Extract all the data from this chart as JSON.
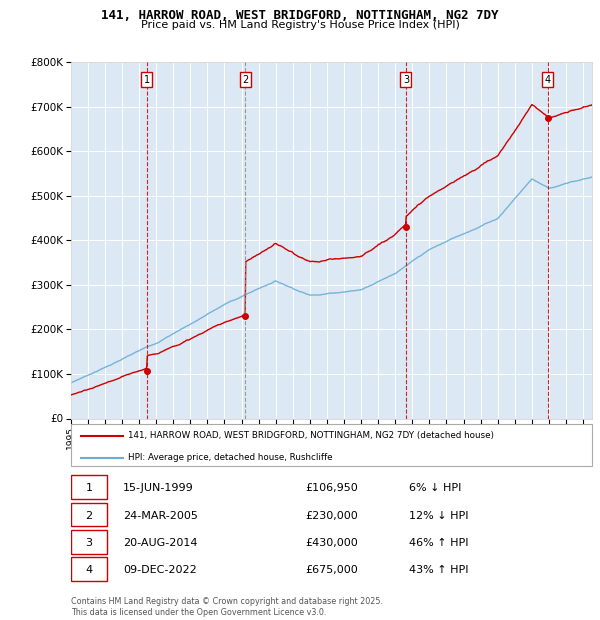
{
  "title": "141, HARROW ROAD, WEST BRIDGFORD, NOTTINGHAM, NG2 7DY",
  "subtitle": "Price paid vs. HM Land Registry's House Price Index (HPI)",
  "plot_bg_color": "#dce9f5",
  "ylim": [
    0,
    800000
  ],
  "yticks": [
    0,
    100000,
    200000,
    300000,
    400000,
    500000,
    600000,
    700000,
    800000
  ],
  "ytick_labels": [
    "£0",
    "£100K",
    "£200K",
    "£300K",
    "£400K",
    "£500K",
    "£600K",
    "£700K",
    "£800K"
  ],
  "xlim_start": 1995.0,
  "xlim_end": 2025.5,
  "sale_dates": [
    1999.45,
    2005.23,
    2014.63,
    2022.94
  ],
  "sale_prices": [
    106950,
    230000,
    430000,
    675000
  ],
  "sale_labels": [
    "1",
    "2",
    "3",
    "4"
  ],
  "sale_vline_colors": [
    "#cc0000",
    "#888888",
    "#cc0000",
    "#cc0000"
  ],
  "hpi_line_color": "#6aaed6",
  "price_line_color": "#cc0000",
  "legend_house_label": "141, HARROW ROAD, WEST BRIDGFORD, NOTTINGHAM, NG2 7DY (detached house)",
  "legend_hpi_label": "HPI: Average price, detached house, Rushcliffe",
  "table_rows": [
    {
      "num": "1",
      "date": "15-JUN-1999",
      "price": "£106,950",
      "change": "6% ↓ HPI"
    },
    {
      "num": "2",
      "date": "24-MAR-2005",
      "price": "£230,000",
      "change": "12% ↓ HPI"
    },
    {
      "num": "3",
      "date": "20-AUG-2014",
      "price": "£430,000",
      "change": "46% ↑ HPI"
    },
    {
      "num": "4",
      "date": "09-DEC-2022",
      "price": "£675,000",
      "change": "43% ↑ HPI"
    }
  ],
  "footer": "Contains HM Land Registry data © Crown copyright and database right 2025.\nThis data is licensed under the Open Government Licence v3.0."
}
